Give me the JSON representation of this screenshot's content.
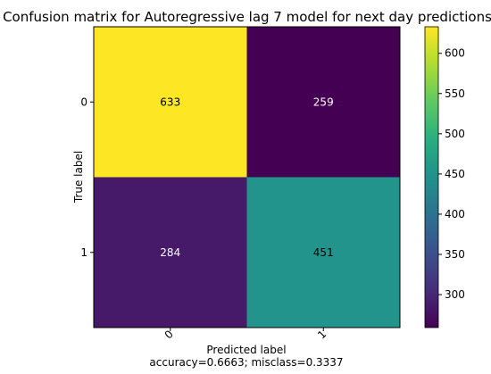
{
  "chart_data": {
    "type": "heatmap",
    "title": "Confusion matrix for Autoregressive lag 7 model for next day predictions",
    "xlabel": "Predicted label",
    "ylabel": "True label",
    "footer": "accuracy=0.6663; misclass=0.3337",
    "x_categories": [
      "0",
      "1"
    ],
    "y_categories": [
      "0",
      "1"
    ],
    "matrix": [
      [
        633,
        259
      ],
      [
        284,
        451
      ]
    ],
    "colormap": "viridis",
    "colorbar": {
      "range": [
        259,
        633
      ],
      "ticks": [
        300,
        350,
        400,
        450,
        500,
        550,
        600
      ],
      "tick_labels": [
        "300",
        "350",
        "400",
        "450",
        "500",
        "550",
        "600"
      ]
    },
    "cell_text_colors": {
      "dark_cell": "#ffffff",
      "light_cell": "#000000"
    }
  }
}
